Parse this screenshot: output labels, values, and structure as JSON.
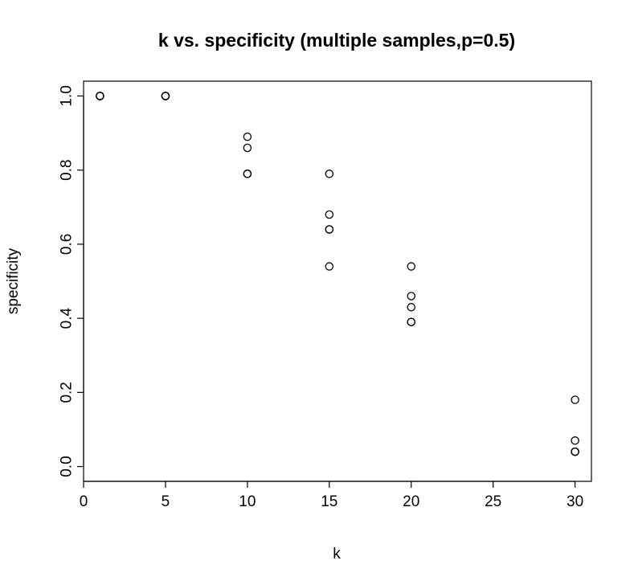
{
  "chart_data": {
    "type": "scatter",
    "title": "k vs. specificity (multiple samples,p=0.5)",
    "xlabel": "k",
    "ylabel": "specificity",
    "xlim": [
      0,
      31
    ],
    "ylim": [
      -0.04,
      1.04
    ],
    "xticks": [
      0,
      5,
      10,
      15,
      20,
      25,
      30
    ],
    "yticks": [
      0.0,
      0.2,
      0.4,
      0.6,
      0.8,
      1.0
    ],
    "xtick_labels": [
      "0",
      "5",
      "10",
      "15",
      "20",
      "25",
      "30"
    ],
    "ytick_labels": [
      "0.0",
      "0.2",
      "0.4",
      "0.6",
      "0.8",
      "1.0"
    ],
    "grid": false,
    "legend": "none",
    "marker": "open-circle",
    "series": [
      {
        "x": [
          1,
          1,
          1,
          1,
          1,
          5,
          5,
          5,
          5,
          5,
          10,
          10,
          10,
          10,
          10,
          15,
          15,
          15,
          15,
          15,
          20,
          20,
          20,
          20,
          20,
          30,
          30,
          30,
          30,
          30
        ],
        "y": [
          1.0,
          1.0,
          1.0,
          1.0,
          1.0,
          1.0,
          1.0,
          1.0,
          1.0,
          1.0,
          0.89,
          0.86,
          0.79,
          0.79,
          0.79,
          0.79,
          0.68,
          0.64,
          0.64,
          0.54,
          0.54,
          0.46,
          0.43,
          0.39,
          0.39,
          0.18,
          0.07,
          0.04,
          0.04,
          0.04
        ]
      }
    ]
  }
}
